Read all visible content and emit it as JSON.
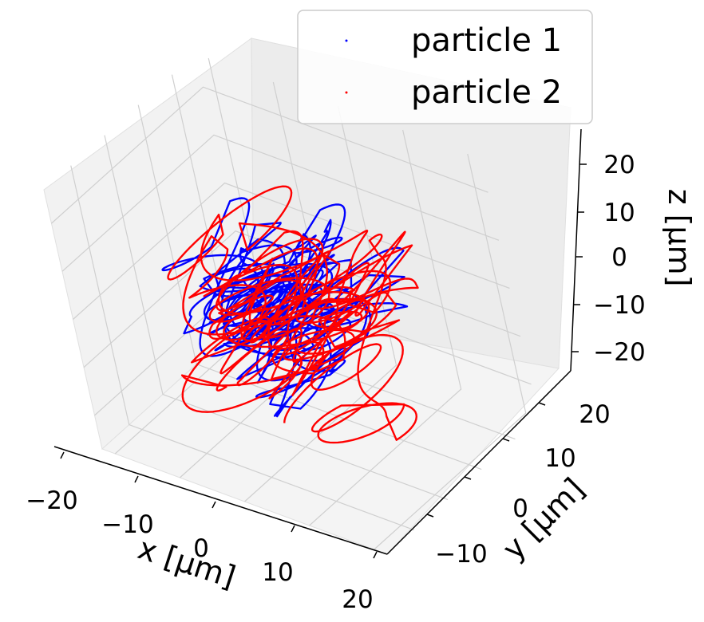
{
  "chart_data": {
    "type": "line",
    "projection": "3d",
    "xlabel": "x [μm]",
    "ylabel": "y [μm]",
    "zlabel": "z [μm]",
    "xlim": [
      -22,
      22
    ],
    "ylim": [
      -18,
      27
    ],
    "zlim": [
      -27,
      27
    ],
    "x_ticks": [
      "−20",
      "−10",
      "0",
      "10",
      "20"
    ],
    "y_ticks": [
      "−10",
      "0",
      "10",
      "20"
    ],
    "z_ticks": [
      "−20",
      "−10",
      "0",
      "10",
      "20"
    ],
    "grid": true,
    "legend_position": "top-right",
    "series": [
      {
        "name": "particle 1",
        "color": "#0000ff",
        "description": "long random looping trajectory",
        "extent_x": [
          -15,
          15
        ],
        "extent_y": [
          -12,
          16
        ],
        "extent_z": [
          -20,
          20
        ]
      },
      {
        "name": "particle 2",
        "color": "#ff0000",
        "description": "long random looping trajectory",
        "extent_x": [
          -18,
          20
        ],
        "extent_y": [
          -14,
          18
        ],
        "extent_z": [
          -22,
          22
        ]
      }
    ]
  }
}
